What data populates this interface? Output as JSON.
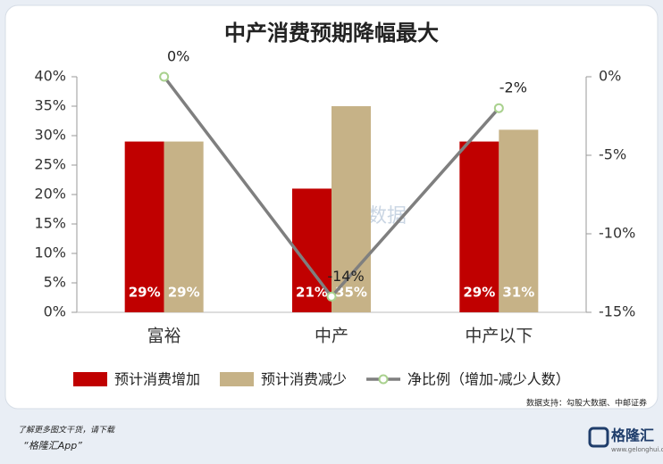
{
  "chart_data": {
    "type": "bar-line",
    "title": "中产消费预期降幅最大",
    "categories": [
      "富裕",
      "中产",
      "中产以下"
    ],
    "series": [
      {
        "name": "预计消费增加",
        "type": "bar",
        "color": "#c00000",
        "values": [
          29,
          21,
          29
        ],
        "value_labels": [
          "29%",
          "21%",
          "29%"
        ]
      },
      {
        "name": "预计消费减少",
        "type": "bar",
        "color": "#c6b287",
        "values": [
          29,
          35,
          31
        ],
        "value_labels": [
          "29%",
          "35%",
          "31%"
        ]
      },
      {
        "name": "净比例（增加-减少人数）",
        "type": "line",
        "axis": "y2",
        "color": "#7f7f7f",
        "marker_color": "#a9d18e",
        "values": [
          0,
          -14,
          -2
        ],
        "value_labels": [
          "0%",
          "-14%",
          "-2%"
        ]
      }
    ],
    "ylim": [
      0,
      40
    ],
    "yticks": [
      {
        "value": 0,
        "label": "0%"
      },
      {
        "value": 5,
        "label": "5%"
      },
      {
        "value": 10,
        "label": "10%"
      },
      {
        "value": 15,
        "label": "15%"
      },
      {
        "value": 20,
        "label": "20%"
      },
      {
        "value": 25,
        "label": "25%"
      },
      {
        "value": 30,
        "label": "30%"
      },
      {
        "value": 35,
        "label": "35%"
      },
      {
        "value": 40,
        "label": "40%"
      }
    ],
    "y2lim": [
      -15,
      0
    ],
    "y2ticks": [
      {
        "value": 0,
        "label": "0%"
      },
      {
        "value": -5,
        "label": "-5%"
      },
      {
        "value": -10,
        "label": "-10%"
      },
      {
        "value": -15,
        "label": "-15%"
      }
    ],
    "watermark": "勾股大数据",
    "source": "数据支持：勾股大数据、中邮证券",
    "footer_note": "了解更多图文干货，请下载",
    "footer_app": "“格隆汇App”",
    "footer_logo": "格隆汇",
    "footer_url": "www.gelonghui.com"
  }
}
